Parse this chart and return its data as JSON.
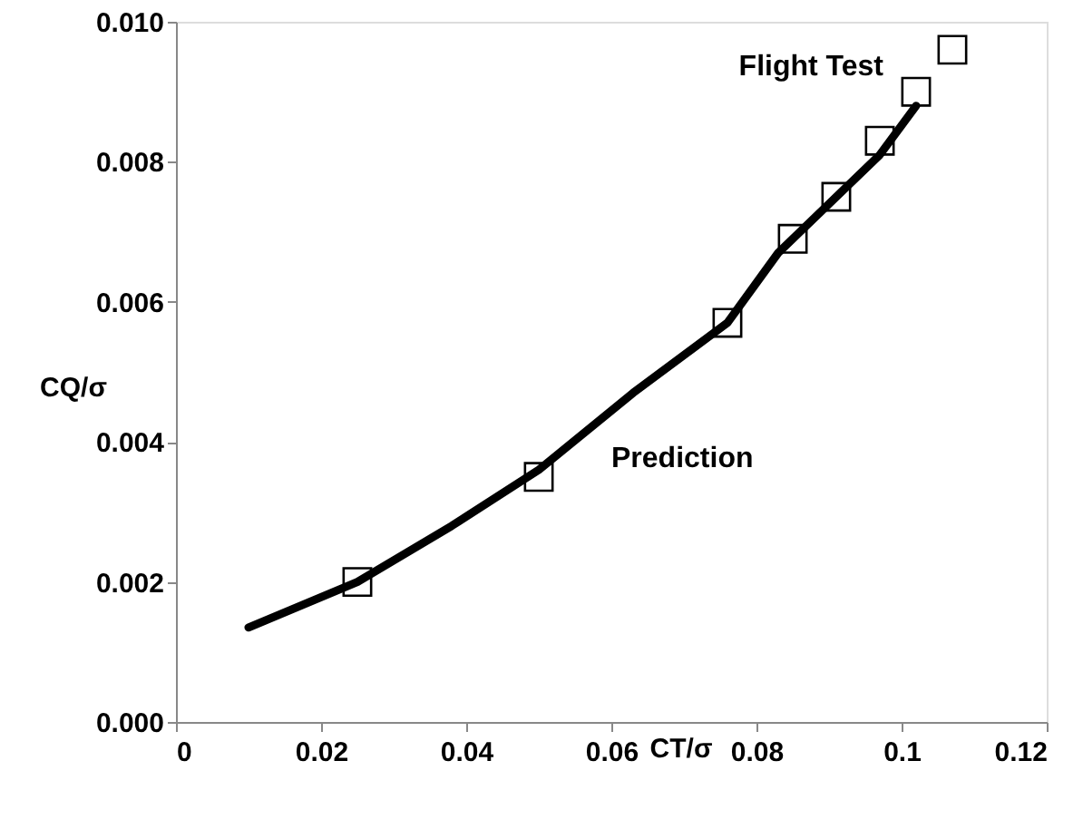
{
  "chart_data": {
    "type": "scatter",
    "xlabel": "CT/σ",
    "ylabel": "CQ/σ",
    "xlim": [
      0,
      0.12
    ],
    "xticks": [
      0,
      0.02,
      0.04,
      0.06,
      0.08,
      {
        "value": 0.1,
        "label": "0.1"
      },
      0.12
    ],
    "ylim": [
      0,
      0.01
    ],
    "yticks": [
      {
        "value": 0,
        "label": "0.000"
      },
      {
        "value": 0.002,
        "label": "0.002"
      },
      {
        "value": 0.004,
        "label": "0.004"
      },
      {
        "value": 0.006,
        "label": "0.006"
      },
      {
        "value": 0.008,
        "label": "0.008"
      },
      {
        "value": 0.01,
        "label": "0.010"
      }
    ],
    "grid": false,
    "legend": false,
    "series": [
      {
        "name": "Flight Test",
        "marker": "square",
        "color": "#000000",
        "x": [
          0.025,
          0.05,
          0.076,
          0.085,
          0.091,
          0.097,
          0.102,
          0.107
        ],
        "values": [
          0.002,
          0.0035,
          0.0057,
          0.0069,
          0.0075,
          0.0083,
          0.009,
          0.0096
        ]
      },
      {
        "name": "Prediction",
        "type": "line",
        "line_style": "solid",
        "color": "#000000",
        "x": [
          0.01,
          0.025,
          0.038,
          0.05,
          0.063,
          0.076,
          0.083,
          0.091,
          0.097,
          0.102
        ],
        "values": [
          0.00135,
          0.002,
          0.0028,
          0.0036,
          0.0047,
          0.0057,
          0.0067,
          0.0075,
          0.0081,
          0.0088
        ]
      }
    ]
  }
}
